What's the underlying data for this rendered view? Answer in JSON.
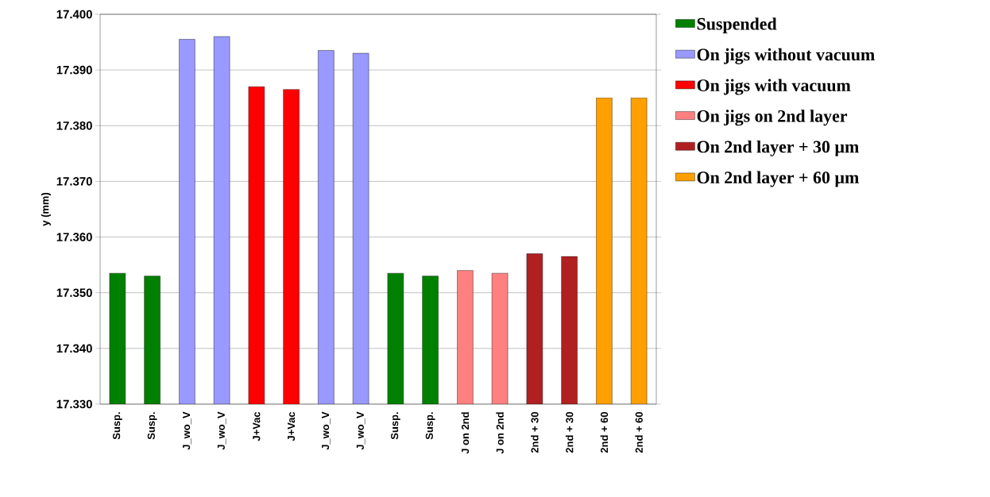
{
  "chart_data": {
    "type": "bar",
    "ylabel": "y (mm)",
    "categories": [
      "Susp.",
      "Susp.",
      "J_wo_V",
      "J_wo_V",
      "J+Vac",
      "J+Vac",
      "J_wo_V",
      "J_wo_V",
      "Susp.",
      "Susp.",
      "J on 2nd",
      "J on 2nd",
      "2nd + 30",
      "2nd + 30",
      "2nd + 60",
      "2nd + 60"
    ],
    "series": [
      {
        "name": "Suspended",
        "color": "#008000",
        "values": [
          17.3535,
          17.353,
          null,
          null,
          null,
          null,
          null,
          null,
          17.3535,
          17.353,
          null,
          null,
          null,
          null,
          null,
          null
        ]
      },
      {
        "name": "On jigs without vacuum",
        "color": "#9999ff",
        "values": [
          null,
          null,
          17.3955,
          17.396,
          null,
          null,
          17.3935,
          17.393,
          null,
          null,
          null,
          null,
          null,
          null,
          null,
          null
        ]
      },
      {
        "name": "On jigs with vacuum",
        "color": "#ff0000",
        "values": [
          null,
          null,
          null,
          null,
          17.387,
          17.3865,
          null,
          null,
          null,
          null,
          null,
          null,
          null,
          null,
          null,
          null
        ]
      },
      {
        "name": "On jigs on 2nd layer",
        "color": "#ff8080",
        "values": [
          null,
          null,
          null,
          null,
          null,
          null,
          null,
          null,
          null,
          null,
          17.354,
          17.3535,
          null,
          null,
          null,
          null
        ]
      },
      {
        "name": "On 2nd layer + 30 µm",
        "color": "#b02020",
        "values": [
          null,
          null,
          null,
          null,
          null,
          null,
          null,
          null,
          null,
          null,
          null,
          null,
          17.357,
          17.3565,
          null,
          null
        ]
      },
      {
        "name": "On 2nd layer + 60 µm",
        "color": "#ffa000",
        "values": [
          null,
          null,
          null,
          null,
          null,
          null,
          null,
          null,
          null,
          null,
          null,
          null,
          null,
          null,
          17.385,
          17.385
        ]
      }
    ],
    "ylim": [
      17.33,
      17.4
    ],
    "yticks": [
      {
        "value": 17.33,
        "label": "17.330"
      },
      {
        "value": 17.34,
        "label": "17.340"
      },
      {
        "value": 17.35,
        "label": "17.350"
      },
      {
        "value": 17.36,
        "label": "17.360"
      },
      {
        "value": 17.37,
        "label": "17.370"
      },
      {
        "value": 17.38,
        "label": "17.380"
      },
      {
        "value": 17.39,
        "label": "17.390"
      },
      {
        "value": 17.4,
        "label": "17.400"
      }
    ],
    "grid": "y",
    "legend": "right"
  }
}
